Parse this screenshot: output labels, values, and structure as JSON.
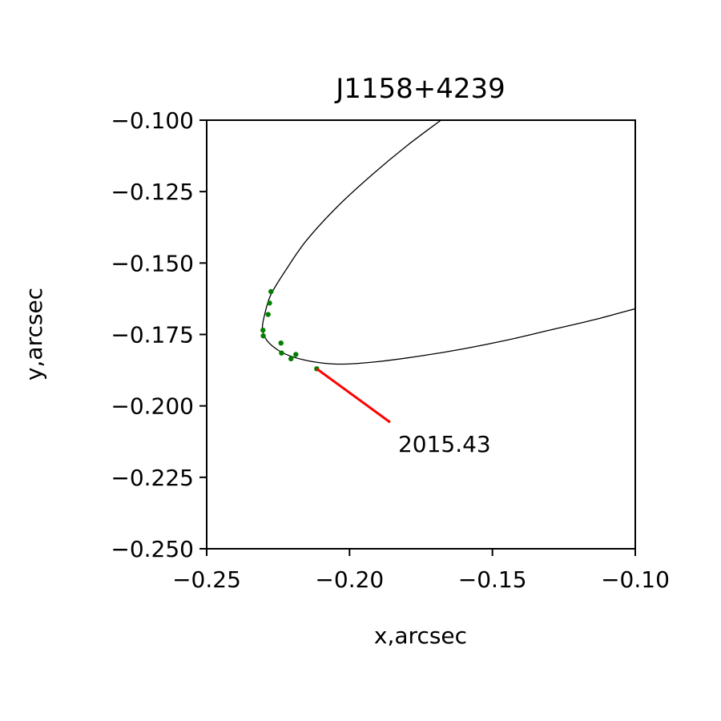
{
  "chart_data": {
    "type": "scatter",
    "title": "J1158+4239",
    "xlabel": "x,arcsec",
    "ylabel": "y,arcsec",
    "xlim": [
      -0.25,
      -0.1
    ],
    "ylim": [
      -0.25,
      -0.1
    ],
    "xticks": [
      -0.25,
      -0.2,
      -0.15,
      -0.1
    ],
    "xtick_labels": [
      "−0.25",
      "−0.20",
      "−0.15",
      "−0.10"
    ],
    "yticks": [
      -0.1,
      -0.125,
      -0.15,
      -0.175,
      -0.2,
      -0.225,
      -0.25
    ],
    "ytick_labels": [
      "−0.100",
      "−0.125",
      "−0.150",
      "−0.175",
      "−0.200",
      "−0.225",
      "−0.250"
    ],
    "grid": false,
    "orbit": {
      "x": [
        -0.168,
        -0.18,
        -0.192,
        -0.204,
        -0.215,
        -0.222,
        -0.2275,
        -0.2297,
        -0.2305,
        -0.229,
        -0.225,
        -0.22,
        -0.213,
        -0.206,
        -0.2,
        -0.19,
        -0.175,
        -0.16,
        -0.145,
        -0.13,
        -0.115,
        -0.1
      ],
      "y": [
        -0.1,
        -0.109,
        -0.119,
        -0.13,
        -0.142,
        -0.152,
        -0.161,
        -0.168,
        -0.173,
        -0.177,
        -0.1805,
        -0.1828,
        -0.1845,
        -0.1853,
        -0.1853,
        -0.1845,
        -0.1825,
        -0.18,
        -0.177,
        -0.1735,
        -0.17,
        -0.166
      ],
      "color": "#000000"
    },
    "series": [
      {
        "x": [
          -0.2275,
          -0.228,
          -0.2285,
          -0.2303,
          -0.2302,
          -0.224,
          -0.2238,
          -0.2205,
          -0.2188,
          -0.2115
        ],
        "y": [
          -0.16,
          -0.164,
          -0.168,
          -0.1735,
          -0.1755,
          -0.178,
          -0.1815,
          -0.1835,
          -0.182,
          -0.187
        ],
        "color": "#007f00"
      }
    ],
    "annotations": [
      {
        "text": "2015.43",
        "point": [
          -0.2115,
          -0.187
        ],
        "text_pos": [
          -0.183,
          -0.2133
        ],
        "color": "#ff0000"
      }
    ]
  }
}
